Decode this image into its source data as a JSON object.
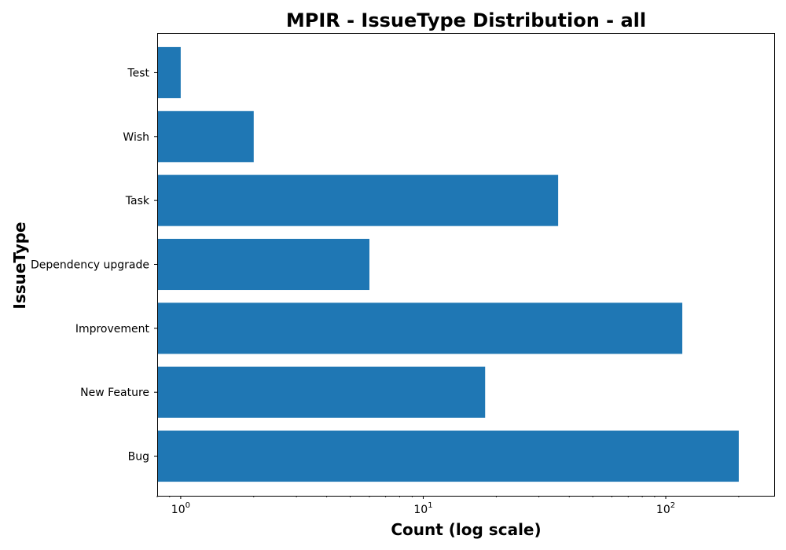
{
  "chart_data": {
    "type": "bar",
    "orientation": "horizontal",
    "title": "MPIR - IssueType Distribution - all",
    "xlabel": "Count (log scale)",
    "ylabel": "IssueType",
    "x_scale": "log",
    "xlim": [
      0.8,
      280
    ],
    "x_ticks": [
      {
        "base": "10",
        "exp": "0",
        "value": 1
      },
      {
        "base": "10",
        "exp": "1",
        "value": 10
      },
      {
        "base": "10",
        "exp": "2",
        "value": 100
      }
    ],
    "categories": [
      "Bug",
      "New Feature",
      "Improvement",
      "Dependency upgrade",
      "Task",
      "Wish",
      "Test"
    ],
    "values": [
      200,
      18,
      117,
      6,
      36,
      2,
      1
    ],
    "color": "#1f77b4",
    "grid": false,
    "legend": "none"
  }
}
